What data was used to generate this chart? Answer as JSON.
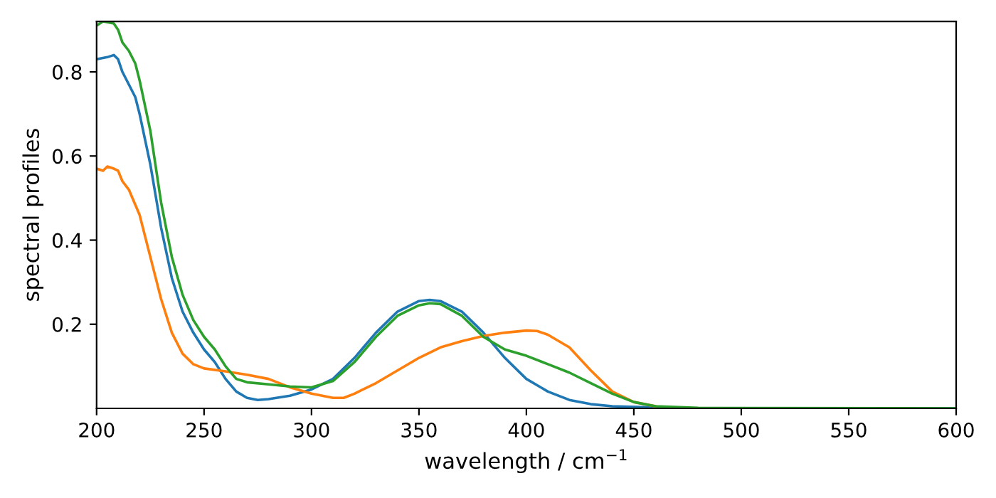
{
  "chart_data": {
    "type": "line",
    "xlabel": "wavelength / cm$^{−1}$",
    "ylabel": "spectral profiles",
    "xlim": [
      200,
      600
    ],
    "ylim": [
      0,
      0.92
    ],
    "xticks": [
      200,
      250,
      300,
      350,
      400,
      450,
      500,
      550,
      600
    ],
    "yticks": [
      0.2,
      0.4,
      0.6,
      0.8
    ],
    "grid": false,
    "legend": false,
    "series": [
      {
        "color": "#1f77b4",
        "x": [
          200,
          205,
          208,
          210,
          212,
          215,
          218,
          220,
          225,
          230,
          235,
          240,
          245,
          250,
          255,
          260,
          265,
          270,
          275,
          280,
          290,
          300,
          310,
          320,
          330,
          340,
          350,
          355,
          360,
          370,
          380,
          390,
          400,
          410,
          420,
          430,
          440,
          460,
          480,
          600
        ],
        "values": [
          0.83,
          0.835,
          0.84,
          0.83,
          0.8,
          0.77,
          0.74,
          0.7,
          0.58,
          0.43,
          0.31,
          0.23,
          0.18,
          0.14,
          0.11,
          0.07,
          0.04,
          0.025,
          0.02,
          0.022,
          0.03,
          0.045,
          0.07,
          0.12,
          0.18,
          0.23,
          0.255,
          0.258,
          0.255,
          0.23,
          0.18,
          0.12,
          0.07,
          0.04,
          0.02,
          0.01,
          0.005,
          0.002,
          0.0,
          0.0
        ]
      },
      {
        "color": "#ff7f0e",
        "x": [
          200,
          203,
          205,
          208,
          210,
          212,
          215,
          220,
          225,
          230,
          235,
          240,
          245,
          250,
          260,
          270,
          280,
          290,
          300,
          310,
          315,
          320,
          330,
          340,
          350,
          360,
          370,
          380,
          390,
          400,
          405,
          410,
          420,
          430,
          440,
          450,
          460
        ],
        "values": [
          0.57,
          0.565,
          0.575,
          0.57,
          0.565,
          0.54,
          0.52,
          0.46,
          0.36,
          0.26,
          0.18,
          0.13,
          0.105,
          0.095,
          0.088,
          0.08,
          0.07,
          0.05,
          0.035,
          0.025,
          0.025,
          0.035,
          0.06,
          0.09,
          0.12,
          0.145,
          0.16,
          0.172,
          0.18,
          0.185,
          0.184,
          0.175,
          0.145,
          0.09,
          0.04,
          0.015,
          0.005
        ]
      },
      {
        "color": "#2ca02c",
        "x": [
          200,
          203,
          208,
          210,
          212,
          215,
          218,
          220,
          225,
          230,
          235,
          240,
          245,
          250,
          255,
          260,
          265,
          270,
          280,
          290,
          300,
          310,
          320,
          330,
          340,
          350,
          355,
          360,
          370,
          380,
          390,
          400,
          410,
          420,
          430,
          440,
          450,
          460,
          480,
          600
        ],
        "values": [
          0.91,
          0.92,
          0.915,
          0.9,
          0.87,
          0.85,
          0.82,
          0.78,
          0.66,
          0.49,
          0.36,
          0.27,
          0.21,
          0.17,
          0.14,
          0.1,
          0.07,
          0.062,
          0.057,
          0.052,
          0.05,
          0.065,
          0.11,
          0.17,
          0.22,
          0.245,
          0.25,
          0.248,
          0.22,
          0.17,
          0.14,
          0.125,
          0.105,
          0.085,
          0.06,
          0.035,
          0.015,
          0.005,
          0.001,
          0.0
        ]
      }
    ]
  }
}
